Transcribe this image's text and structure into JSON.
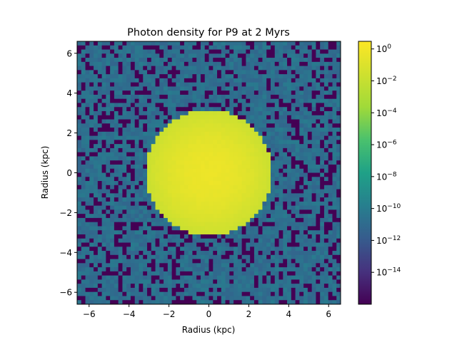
{
  "chart_data": {
    "type": "heatmap",
    "title": "Photon density for P9  at 2 Myrs",
    "xlabel": "Radius (kpc)",
    "ylabel": "Radius (kpc)",
    "xlim": [
      -6.6,
      6.6
    ],
    "ylim": [
      -6.6,
      6.6
    ],
    "xticks": [
      {
        "value": -6,
        "label": "−6"
      },
      {
        "value": -4,
        "label": "−4"
      },
      {
        "value": -2,
        "label": "−2"
      },
      {
        "value": 0,
        "label": "0"
      },
      {
        "value": 2,
        "label": "2"
      },
      {
        "value": 4,
        "label": "4"
      },
      {
        "value": 6,
        "label": "6"
      }
    ],
    "yticks": [
      {
        "value": -6,
        "label": "−6"
      },
      {
        "value": -4,
        "label": "−4"
      },
      {
        "value": -2,
        "label": "−2"
      },
      {
        "value": 0,
        "label": "0"
      },
      {
        "value": 2,
        "label": "2"
      },
      {
        "value": 4,
        "label": "4"
      },
      {
        "value": 6,
        "label": "6"
      }
    ],
    "colormap": "viridis",
    "color_scale": "log",
    "colorbar_range": [
      1e-16,
      3
    ],
    "colorbar_ticks": [
      {
        "value": 1,
        "base": "10",
        "exp": "0"
      },
      {
        "value": 0.01,
        "base": "10",
        "exp": "−2"
      },
      {
        "value": 0.0001,
        "base": "10",
        "exp": "−4"
      },
      {
        "value": 1e-06,
        "base": "10",
        "exp": "−6"
      },
      {
        "value": 1e-08,
        "base": "10",
        "exp": "−8"
      },
      {
        "value": 1e-10,
        "base": "10",
        "exp": "−10"
      },
      {
        "value": 1e-12,
        "base": "10",
        "exp": "−12"
      },
      {
        "value": 1e-14,
        "base": "10",
        "exp": "−14"
      }
    ],
    "peak_value": 1,
    "background_value": 1e-10,
    "empty_cell_value": 1e-16,
    "peak_center": [
      0,
      0
    ]
  }
}
